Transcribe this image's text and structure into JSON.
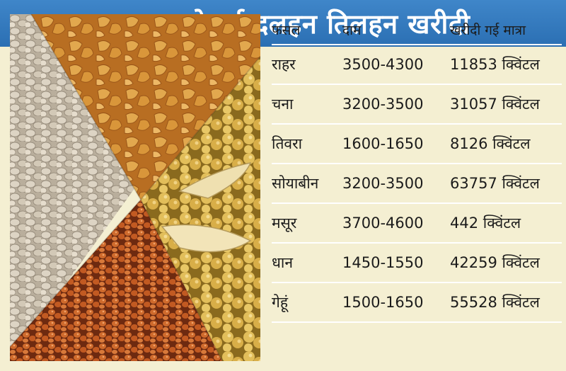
{
  "header": {
    "title": "साल भर मे हुई दलहन तिलहन खरीदी"
  },
  "table": {
    "columns": [
      "फसल",
      "दाम",
      "खरीदी गई मात्रा"
    ],
    "rows": [
      {
        "crop": "राहर",
        "price": "3500-4300",
        "quantity": "11853 क्विंटल"
      },
      {
        "crop": "चना",
        "price": "3200-3500",
        "quantity": "31057 क्विंटल"
      },
      {
        "crop": "तिवरा",
        "price": "1600-1650",
        "quantity": "8126 क्विंटल"
      },
      {
        "crop": "सोयाबीन",
        "price": "3200-3500",
        "quantity": "63757 क्विंटल"
      },
      {
        "crop": "मसूर",
        "price": "3700-4600",
        "quantity": "442 क्विंटल"
      },
      {
        "crop": "धान",
        "price": "1450-1550",
        "quantity": "42259 क्विंटल"
      },
      {
        "crop": "गेहूं",
        "price": "1500-1650",
        "quantity": "55528 क्विंटल"
      }
    ]
  },
  "colors": {
    "header_blue": "#2b6fb3",
    "panel_cream": "#f4efd2",
    "lentil": "#cfc6b6",
    "toor_dal": "#d89a3e",
    "soybean": "#d9b04a",
    "masoor": "#c8612a"
  }
}
